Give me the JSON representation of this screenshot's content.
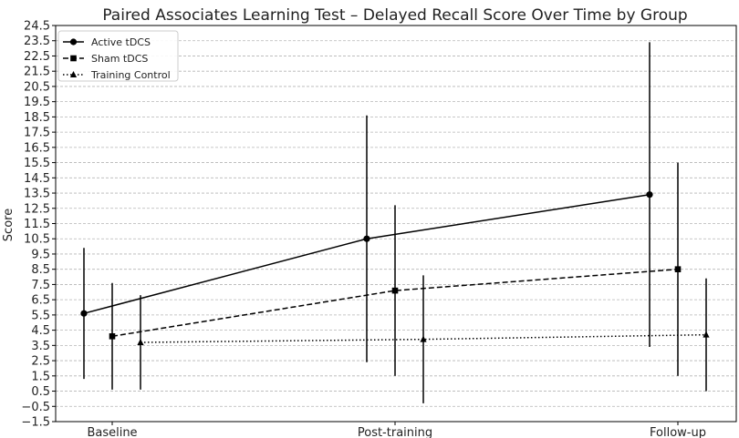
{
  "chart_data": {
    "type": "line",
    "title": "Paired Associates Learning Test – Delayed Recall Score Over Time by Group",
    "xlabel": "",
    "ylabel": "Score",
    "categories": [
      "Baseline",
      "Post-training",
      "Follow-up"
    ],
    "ylim": [
      -1.5,
      24.5
    ],
    "yticks": [
      -1.5,
      -0.5,
      0.5,
      1.5,
      2.5,
      3.5,
      4.5,
      5.5,
      6.5,
      7.5,
      8.5,
      9.5,
      10.5,
      11.5,
      12.5,
      13.5,
      14.5,
      15.5,
      16.5,
      17.5,
      18.5,
      19.5,
      20.5,
      21.5,
      22.5,
      23.5,
      24.5
    ],
    "ytick_labels": [
      "−1.5",
      "−0.5",
      "0.5",
      "1.5",
      "2.5",
      "3.5",
      "4.5",
      "5.5",
      "6.5",
      "7.5",
      "8.5",
      "9.5",
      "10.5",
      "11.5",
      "12.5",
      "13.5",
      "14.5",
      "15.5",
      "16.5",
      "17.5",
      "18.5",
      "19.5",
      "20.5",
      "21.5",
      "22.5",
      "23.5",
      "24.5"
    ],
    "grid": true,
    "legend_position": "top-left",
    "series": [
      {
        "name": "Active tDCS",
        "marker": "circle",
        "linestyle": "solid",
        "color": "#000000",
        "values": [
          5.6,
          10.5,
          13.4
        ],
        "error_low": [
          1.3,
          2.4,
          3.4
        ],
        "error_high": [
          9.9,
          18.6,
          23.4
        ]
      },
      {
        "name": "Sham tDCS",
        "marker": "square",
        "linestyle": "dashed",
        "color": "#000000",
        "values": [
          4.1,
          7.1,
          8.5
        ],
        "error_low": [
          0.6,
          1.5,
          1.5
        ],
        "error_high": [
          7.6,
          12.7,
          15.5
        ]
      },
      {
        "name": "Training Control",
        "marker": "triangle",
        "linestyle": "dotted",
        "color": "#000000",
        "values": [
          3.7,
          3.9,
          4.2
        ],
        "error_low": [
          0.6,
          -0.3,
          0.5
        ],
        "error_high": [
          6.8,
          8.1,
          7.9
        ]
      }
    ]
  }
}
